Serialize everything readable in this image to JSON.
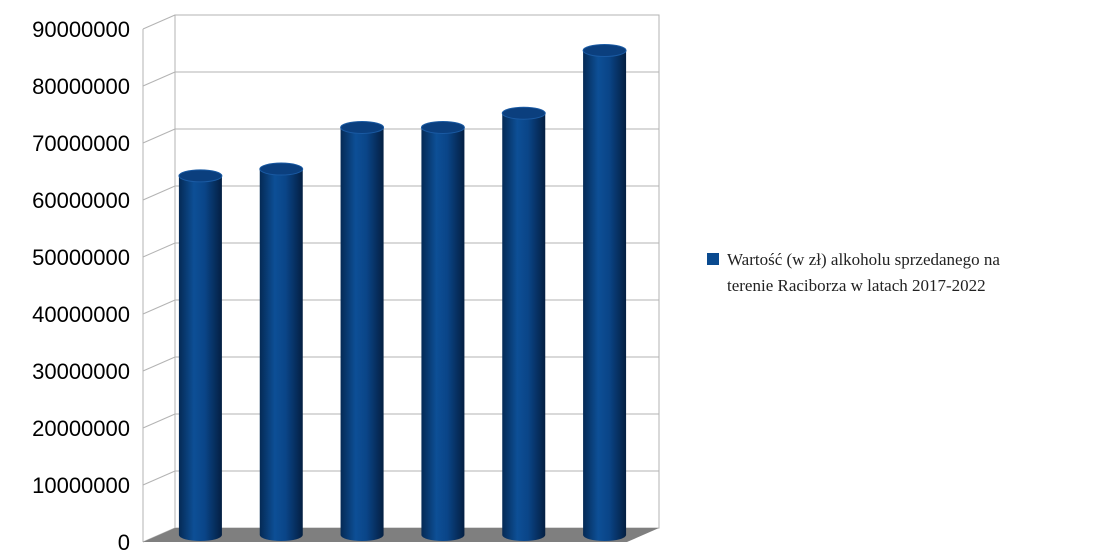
{
  "chart_data": {
    "type": "bar",
    "style": "3d-cylinder",
    "categories": [
      "",
      "",
      "",
      "",
      "",
      ""
    ],
    "series": [
      {
        "name": "Wartość (w zł) alkoholu sprzedanego na terenie Raciborza w latach 2017-2022",
        "color": "#0a4a8f",
        "values": [
          63000000,
          64200000,
          71500000,
          71500000,
          74000000,
          85000000
        ]
      }
    ],
    "title": "",
    "xlabel": "",
    "ylabel": "",
    "ylim": [
      0,
      90000000
    ],
    "yticks": [
      "0",
      "10000000",
      "20000000",
      "30000000",
      "40000000",
      "50000000",
      "60000000",
      "70000000",
      "80000000",
      "90000000"
    ],
    "grid": true,
    "legend_position": "right",
    "legend_lines": [
      "Wartość (w zł) alkoholu sprzedanego na",
      "terenie Raciborza w latach 2017-2022"
    ],
    "colors": {
      "bar": "#0a4a8f",
      "bar_top": "#0b3f7e",
      "floor": "#7f7f7f",
      "grid": "#b3b3b3"
    }
  }
}
